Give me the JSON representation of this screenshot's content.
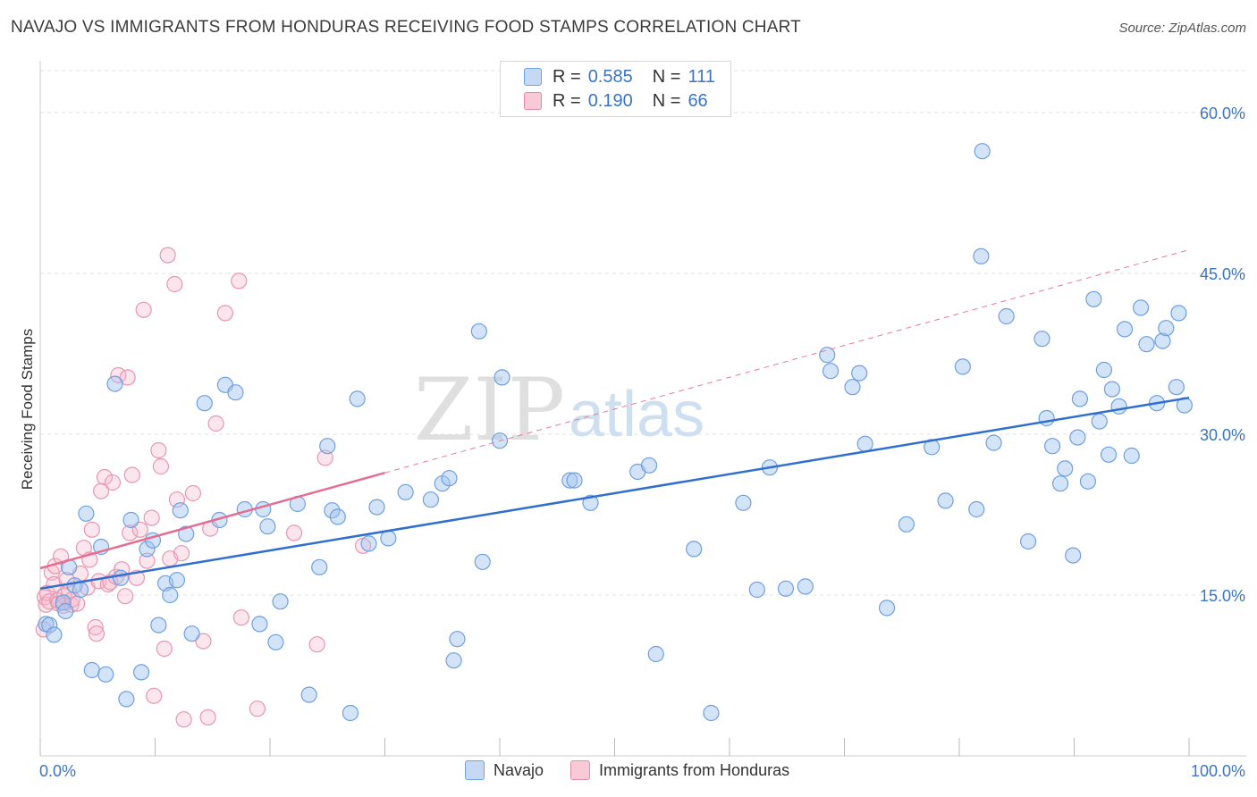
{
  "title": "NAVAJO VS IMMIGRANTS FROM HONDURAS RECEIVING FOOD STAMPS CORRELATION CHART",
  "source": "Source: ZipAtlas.com",
  "watermark": {
    "zip": "ZIP",
    "atlas": "atlas"
  },
  "legend": {
    "series": [
      {
        "name": "Navajo",
        "r_label": "R =",
        "r_value": "0.585",
        "n_label": "N =",
        "n_value": "111",
        "color": "#6ea2e8",
        "fill": "#c5d9f5"
      },
      {
        "name": "Immigrants from Honduras",
        "r_label": "R =",
        "r_value": "0.190",
        "n_label": "N =",
        "n_value": "66",
        "color": "#e78aa6",
        "fill": "#f8cad8"
      }
    ]
  },
  "chart_data": {
    "type": "scatter",
    "title": "NAVAJO VS IMMIGRANTS FROM HONDURAS RECEIVING FOOD STAMPS CORRELATION CHART",
    "xlabel": "",
    "ylabel": "Receiving Food Stamps",
    "xlim": [
      0,
      100
    ],
    "ylim": [
      0,
      64
    ],
    "x_tick_labels": [
      "0.0%",
      "100.0%"
    ],
    "y_ticks": [
      15,
      30,
      45,
      60
    ],
    "y_tick_labels": [
      "15.0%",
      "30.0%",
      "45.0%",
      "60.0%"
    ],
    "grid": true,
    "series": [
      {
        "name": "Navajo",
        "color": "#3a74d0",
        "trend": {
          "x0": 0,
          "y0": 15.6,
          "x1": 100,
          "y1": 33.4,
          "dashed_extension": false
        },
        "points": [
          [
            0.5,
            12.3
          ],
          [
            0.8,
            12.2
          ],
          [
            1.2,
            11.3
          ],
          [
            2.0,
            14.3
          ],
          [
            2.2,
            13.5
          ],
          [
            2.5,
            17.6
          ],
          [
            3.0,
            15.9
          ],
          [
            3.5,
            15.5
          ],
          [
            4.0,
            22.6
          ],
          [
            4.5,
            8.0
          ],
          [
            5.3,
            19.5
          ],
          [
            5.7,
            7.6
          ],
          [
            6.5,
            34.7
          ],
          [
            7.0,
            16.6
          ],
          [
            7.5,
            5.3
          ],
          [
            7.9,
            22.0
          ],
          [
            8.8,
            7.8
          ],
          [
            9.3,
            19.3
          ],
          [
            9.8,
            20.1
          ],
          [
            10.3,
            12.2
          ],
          [
            10.9,
            16.1
          ],
          [
            11.3,
            15.0
          ],
          [
            11.9,
            16.4
          ],
          [
            12.2,
            22.9
          ],
          [
            12.7,
            20.7
          ],
          [
            13.2,
            11.4
          ],
          [
            14.3,
            32.9
          ],
          [
            15.6,
            22.0
          ],
          [
            16.1,
            34.6
          ],
          [
            17.0,
            33.9
          ],
          [
            17.8,
            23.0
          ],
          [
            19.1,
            12.3
          ],
          [
            19.4,
            23.0
          ],
          [
            19.8,
            21.4
          ],
          [
            20.5,
            10.6
          ],
          [
            20.9,
            14.4
          ],
          [
            22.4,
            23.5
          ],
          [
            23.4,
            5.7
          ],
          [
            24.3,
            17.6
          ],
          [
            25.0,
            28.9
          ],
          [
            25.4,
            22.9
          ],
          [
            25.9,
            22.3
          ],
          [
            27.0,
            4.0
          ],
          [
            27.6,
            33.3
          ],
          [
            28.6,
            19.8
          ],
          [
            29.3,
            23.2
          ],
          [
            30.3,
            20.3
          ],
          [
            31.8,
            24.6
          ],
          [
            34.0,
            23.9
          ],
          [
            35.0,
            25.4
          ],
          [
            35.6,
            25.9
          ],
          [
            36.0,
            8.9
          ],
          [
            36.3,
            10.9
          ],
          [
            38.2,
            39.6
          ],
          [
            38.5,
            18.1
          ],
          [
            40.0,
            29.4
          ],
          [
            40.2,
            35.3
          ],
          [
            46.1,
            25.7
          ],
          [
            46.5,
            25.7
          ],
          [
            47.9,
            23.6
          ],
          [
            52.0,
            26.5
          ],
          [
            53.0,
            27.1
          ],
          [
            53.6,
            9.5
          ],
          [
            56.9,
            19.3
          ],
          [
            58.4,
            4.0
          ],
          [
            61.2,
            23.6
          ],
          [
            62.4,
            15.5
          ],
          [
            63.5,
            26.9
          ],
          [
            64.9,
            15.6
          ],
          [
            66.6,
            15.8
          ],
          [
            68.5,
            37.4
          ],
          [
            68.8,
            35.9
          ],
          [
            70.7,
            34.4
          ],
          [
            71.3,
            35.7
          ],
          [
            71.8,
            29.1
          ],
          [
            73.7,
            13.8
          ],
          [
            75.4,
            21.6
          ],
          [
            77.6,
            28.8
          ],
          [
            78.8,
            23.8
          ],
          [
            80.3,
            36.3
          ],
          [
            81.5,
            23.0
          ],
          [
            81.9,
            46.6
          ],
          [
            82.0,
            56.4
          ],
          [
            83.0,
            29.2
          ],
          [
            84.1,
            41.0
          ],
          [
            86.0,
            20.0
          ],
          [
            87.2,
            38.9
          ],
          [
            87.6,
            31.5
          ],
          [
            88.1,
            28.9
          ],
          [
            88.8,
            25.4
          ],
          [
            89.2,
            26.8
          ],
          [
            89.9,
            18.7
          ],
          [
            90.3,
            29.7
          ],
          [
            90.5,
            33.3
          ],
          [
            91.2,
            25.6
          ],
          [
            91.7,
            42.6
          ],
          [
            92.2,
            31.2
          ],
          [
            92.6,
            36.0
          ],
          [
            93.0,
            28.1
          ],
          [
            93.3,
            34.2
          ],
          [
            93.9,
            32.6
          ],
          [
            94.4,
            39.8
          ],
          [
            95.0,
            28.0
          ],
          [
            95.8,
            41.8
          ],
          [
            96.3,
            38.4
          ],
          [
            97.2,
            32.9
          ],
          [
            97.7,
            38.7
          ],
          [
            98.0,
            39.9
          ],
          [
            98.9,
            34.4
          ],
          [
            99.1,
            41.3
          ],
          [
            99.6,
            32.7
          ]
        ]
      },
      {
        "name": "Immigrants from Honduras",
        "color": "#e46d92",
        "trend": {
          "x0": 0,
          "y0": 17.5,
          "x1": 30,
          "y1": 26.4,
          "dashed_extension": true,
          "dash_x1": 100,
          "dash_y1": 47.2
        },
        "points": [
          [
            0.3,
            11.8
          ],
          [
            0.4,
            14.8
          ],
          [
            0.5,
            14.1
          ],
          [
            0.6,
            15.2
          ],
          [
            0.8,
            14.4
          ],
          [
            1.0,
            17.1
          ],
          [
            1.2,
            16.0
          ],
          [
            1.3,
            17.7
          ],
          [
            1.5,
            14.5
          ],
          [
            1.6,
            14.2
          ],
          [
            1.8,
            18.6
          ],
          [
            2.0,
            14.0
          ],
          [
            2.1,
            14.9
          ],
          [
            2.3,
            16.4
          ],
          [
            2.5,
            15.3
          ],
          [
            2.7,
            14.1
          ],
          [
            2.8,
            14.6
          ],
          [
            3.2,
            14.2
          ],
          [
            3.5,
            17.0
          ],
          [
            3.8,
            19.4
          ],
          [
            4.1,
            15.7
          ],
          [
            4.3,
            18.3
          ],
          [
            4.5,
            21.1
          ],
          [
            4.8,
            12.0
          ],
          [
            4.9,
            11.4
          ],
          [
            5.1,
            16.3
          ],
          [
            5.3,
            24.7
          ],
          [
            5.6,
            26.0
          ],
          [
            5.9,
            16.0
          ],
          [
            6.1,
            16.2
          ],
          [
            6.3,
            25.5
          ],
          [
            6.6,
            16.7
          ],
          [
            6.8,
            35.5
          ],
          [
            7.1,
            17.4
          ],
          [
            7.4,
            14.9
          ],
          [
            7.6,
            35.3
          ],
          [
            7.8,
            20.8
          ],
          [
            8.0,
            26.2
          ],
          [
            8.4,
            16.6
          ],
          [
            8.7,
            21.1
          ],
          [
            9.0,
            41.6
          ],
          [
            9.3,
            18.2
          ],
          [
            9.7,
            22.2
          ],
          [
            9.9,
            5.6
          ],
          [
            10.3,
            28.5
          ],
          [
            10.5,
            27.0
          ],
          [
            10.8,
            10.0
          ],
          [
            11.1,
            46.7
          ],
          [
            11.3,
            18.4
          ],
          [
            11.7,
            44.0
          ],
          [
            11.9,
            23.9
          ],
          [
            12.3,
            18.9
          ],
          [
            12.5,
            3.4
          ],
          [
            13.3,
            24.5
          ],
          [
            14.2,
            10.7
          ],
          [
            14.6,
            3.6
          ],
          [
            14.8,
            21.2
          ],
          [
            15.3,
            31.0
          ],
          [
            16.1,
            41.3
          ],
          [
            17.3,
            44.3
          ],
          [
            17.5,
            12.9
          ],
          [
            18.9,
            4.4
          ],
          [
            22.1,
            20.8
          ],
          [
            24.1,
            10.4
          ],
          [
            24.8,
            27.8
          ],
          [
            28.1,
            19.6
          ]
        ]
      }
    ]
  }
}
